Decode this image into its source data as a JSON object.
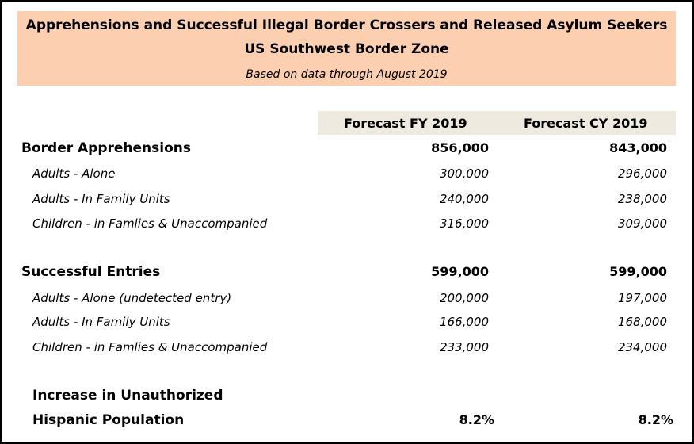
{
  "header": {
    "title_line1": "Apprehensions and Successful Illegal Border Crossers and Released Asylum Seekers",
    "title_line2": "US Southwest Border Zone",
    "subtitle": "Based on data through August 2019"
  },
  "columns": {
    "fy": "Forecast FY 2019",
    "cy": "Forecast CY 2019"
  },
  "apprehensions": {
    "label": "Border Apprehensions",
    "fy": "856,000",
    "cy": "843,000",
    "rows": [
      {
        "label": "Adults -  Alone",
        "fy": "300,000",
        "cy": "296,000"
      },
      {
        "label": "Adults -  In Family Units",
        "fy": "240,000",
        "cy": "238,000"
      },
      {
        "label": "Children - in Famlies & Unaccompanied",
        "fy": "316,000",
        "cy": "309,000"
      }
    ]
  },
  "entries": {
    "label": "Successful Entries",
    "fy": "599,000",
    "cy": "599,000",
    "rows": [
      {
        "label": "Adults -  Alone (undetected entry)",
        "fy": "200,000",
        "cy": "197,000"
      },
      {
        "label": "Adults -  In Family Units",
        "fy": "166,000",
        "cy": "168,000"
      },
      {
        "label": "Children - in Famlies & Unaccompanied",
        "fy": "233,000",
        "cy": "234,000"
      }
    ]
  },
  "population": {
    "label_line1": "Increase in Unauthorized",
    "label_line2": "Hispanic Population",
    "fy": "8.2%",
    "cy": "8.2%"
  }
}
